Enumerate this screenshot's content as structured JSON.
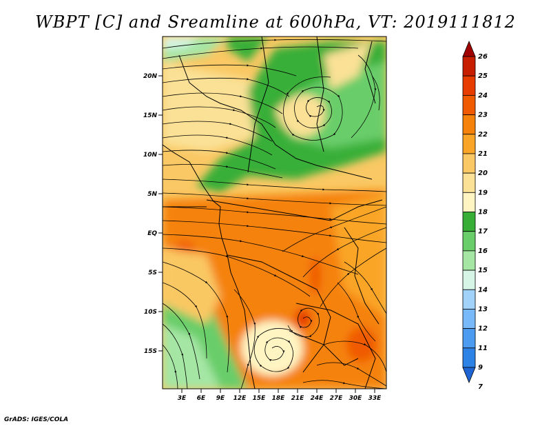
{
  "title": "WBPT [C] and Sreamline at 600hPa, VT: 2019111812",
  "credit": "GrADS: IGES/COLA",
  "map": {
    "lat_labels": [
      "20N",
      "15N",
      "10N",
      "5N",
      "EQ",
      "5S",
      "10S",
      "15S"
    ],
    "lon_labels": [
      "3E",
      "6E",
      "9E",
      "12E",
      "15E",
      "18E",
      "21E",
      "24E",
      "27E",
      "30E",
      "33E"
    ]
  },
  "colorbar": {
    "levels": [
      "26",
      "25",
      "24",
      "23",
      "22",
      "21",
      "20",
      "19",
      "18",
      "17",
      "16",
      "15",
      "14",
      "13",
      "12",
      "11",
      "9",
      "7"
    ],
    "colors": [
      "#a00000",
      "#c81e00",
      "#e63c00",
      "#f05a00",
      "#f5820a",
      "#faa528",
      "#fac864",
      "#fae196",
      "#fff5c3",
      "#37af37",
      "#69cd69",
      "#a5e6a5",
      "#d7f5e6",
      "#a0d2fa",
      "#78b9fa",
      "#4b9bf0",
      "#2d82e6",
      "#1e64d2"
    ]
  }
}
